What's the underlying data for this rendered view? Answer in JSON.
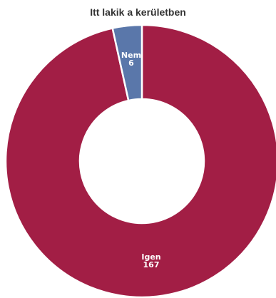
{
  "chart_data": {
    "type": "pie",
    "title": "Itt lakik a kerületben",
    "donut": true,
    "slices": [
      {
        "label": "Igen",
        "value": 167,
        "color": "#a21e45"
      },
      {
        "label": "Nem",
        "value": 6,
        "color": "#5a77aa"
      }
    ]
  }
}
